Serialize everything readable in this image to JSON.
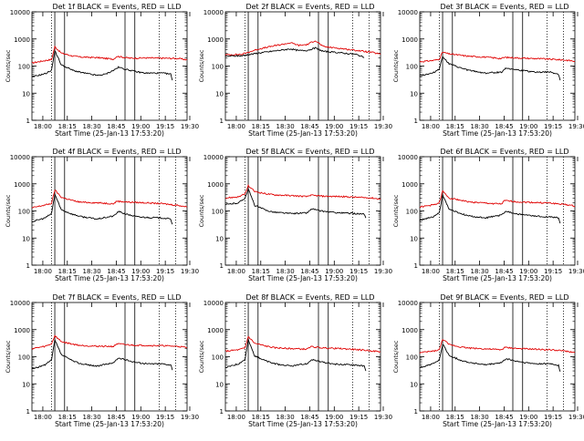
{
  "chart_data": [
    {
      "type": "line",
      "title": "Det 1f BLACK = Events, RED = LLD",
      "xlabel": "Start Time (25-Jan-13 17:53:20)",
      "ylabel": "Counts/sec",
      "yscale": "log",
      "ylim": [
        1,
        10000
      ],
      "x_tick_labels": [
        "18:00",
        "18:15",
        "18:30",
        "18:45",
        "19:00",
        "19:15",
        "19:30"
      ],
      "y_tick_labels": [
        "1",
        "10",
        "100",
        "1000",
        "10000"
      ],
      "lld": [
        [
          0,
          130
        ],
        [
          8,
          160
        ],
        [
          12,
          175
        ],
        [
          14,
          520
        ],
        [
          18,
          300
        ],
        [
          25,
          235
        ],
        [
          30,
          215
        ],
        [
          40,
          205
        ],
        [
          50,
          180
        ],
        [
          52,
          230
        ],
        [
          60,
          195
        ],
        [
          70,
          200
        ],
        [
          80,
          195
        ],
        [
          90,
          190
        ],
        [
          95,
          170
        ]
      ],
      "events": [
        [
          0,
          40
        ],
        [
          8,
          52
        ],
        [
          12,
          70
        ],
        [
          14,
          380
        ],
        [
          18,
          110
        ],
        [
          25,
          70
        ],
        [
          30,
          58
        ],
        [
          40,
          45
        ],
        [
          45,
          50
        ],
        [
          50,
          70
        ],
        [
          53,
          90
        ],
        [
          58,
          75
        ],
        [
          65,
          60
        ],
        [
          70,
          55
        ],
        [
          80,
          55
        ],
        [
          85,
          50
        ],
        [
          86,
          30
        ]
      ]
    },
    {
      "type": "line",
      "title": "Det 2f BLACK = Events, RED = LLD",
      "xlabel": "Start Time (25-Jan-13 17:53:20)",
      "ylabel": "Counts/sec",
      "yscale": "log",
      "ylim": [
        1,
        10000
      ],
      "x_tick_labels": [
        "18:00",
        "18:15",
        "18:30",
        "18:45",
        "19:00",
        "19:15",
        "19:30"
      ],
      "y_tick_labels": [
        "1",
        "10",
        "100",
        "1000",
        "10000"
      ],
      "lld": [
        [
          0,
          260
        ],
        [
          10,
          270
        ],
        [
          20,
          420
        ],
        [
          30,
          560
        ],
        [
          40,
          720
        ],
        [
          45,
          580
        ],
        [
          50,
          620
        ],
        [
          55,
          880
        ],
        [
          60,
          520
        ],
        [
          70,
          450
        ],
        [
          80,
          380
        ],
        [
          90,
          320
        ],
        [
          95,
          270
        ]
      ],
      "events": [
        [
          0,
          230
        ],
        [
          10,
          240
        ],
        [
          20,
          300
        ],
        [
          30,
          360
        ],
        [
          40,
          430
        ],
        [
          45,
          370
        ],
        [
          50,
          380
        ],
        [
          55,
          460
        ],
        [
          60,
          350
        ],
        [
          70,
          310
        ],
        [
          80,
          270
        ],
        [
          85,
          210
        ]
      ]
    },
    {
      "type": "line",
      "title": "Det 3f BLACK = Events, RED = LLD",
      "xlabel": "Start Time (25-Jan-13 17:53:20)",
      "ylabel": "Counts/sec",
      "yscale": "log",
      "ylim": [
        1,
        10000
      ],
      "x_tick_labels": [
        "18:00",
        "18:15",
        "18:30",
        "18:45",
        "19:00",
        "19:15",
        "19:30"
      ],
      "y_tick_labels": [
        "1",
        "10",
        "100",
        "1000",
        "10000"
      ],
      "lld": [
        [
          0,
          145
        ],
        [
          8,
          160
        ],
        [
          12,
          180
        ],
        [
          14,
          330
        ],
        [
          18,
          280
        ],
        [
          25,
          250
        ],
        [
          30,
          230
        ],
        [
          40,
          215
        ],
        [
          50,
          190
        ],
        [
          52,
          210
        ],
        [
          60,
          200
        ],
        [
          70,
          190
        ],
        [
          80,
          180
        ],
        [
          90,
          165
        ],
        [
          95,
          150
        ]
      ],
      "events": [
        [
          0,
          45
        ],
        [
          8,
          55
        ],
        [
          12,
          80
        ],
        [
          14,
          230
        ],
        [
          18,
          120
        ],
        [
          25,
          85
        ],
        [
          30,
          70
        ],
        [
          40,
          55
        ],
        [
          50,
          60
        ],
        [
          53,
          85
        ],
        [
          58,
          75
        ],
        [
          65,
          65
        ],
        [
          70,
          60
        ],
        [
          80,
          60
        ],
        [
          85,
          50
        ],
        [
          86,
          30
        ]
      ]
    },
    {
      "type": "line",
      "title": "Det 4f BLACK = Events, RED = LLD",
      "xlabel": "Start Time (25-Jan-13 17:53:20)",
      "ylabel": "Counts/sec",
      "yscale": "log",
      "ylim": [
        1,
        10000
      ],
      "x_tick_labels": [
        "18:00",
        "18:15",
        "18:30",
        "18:45",
        "19:00",
        "19:15",
        "19:30"
      ],
      "y_tick_labels": [
        "1",
        "10",
        "100",
        "1000",
        "10000"
      ],
      "lld": [
        [
          0,
          130
        ],
        [
          8,
          165
        ],
        [
          12,
          190
        ],
        [
          14,
          600
        ],
        [
          18,
          320
        ],
        [
          25,
          240
        ],
        [
          30,
          210
        ],
        [
          40,
          200
        ],
        [
          50,
          185
        ],
        [
          52,
          230
        ],
        [
          60,
          210
        ],
        [
          70,
          200
        ],
        [
          80,
          185
        ],
        [
          90,
          160
        ],
        [
          95,
          140
        ]
      ],
      "events": [
        [
          0,
          40
        ],
        [
          8,
          55
        ],
        [
          12,
          80
        ],
        [
          14,
          420
        ],
        [
          18,
          110
        ],
        [
          25,
          75
        ],
        [
          30,
          62
        ],
        [
          40,
          50
        ],
        [
          50,
          65
        ],
        [
          53,
          95
        ],
        [
          58,
          75
        ],
        [
          65,
          60
        ],
        [
          70,
          58
        ],
        [
          80,
          55
        ],
        [
          85,
          50
        ],
        [
          86,
          32
        ]
      ]
    },
    {
      "type": "line",
      "title": "Det 5f BLACK = Events, RED = LLD",
      "xlabel": "Start Time (25-Jan-13 17:53:20)",
      "ylabel": "Counts/sec",
      "yscale": "log",
      "ylim": [
        1,
        10000
      ],
      "x_tick_labels": [
        "18:00",
        "18:15",
        "18:30",
        "18:45",
        "19:00",
        "19:15",
        "19:30"
      ],
      "y_tick_labels": [
        "1",
        "10",
        "100",
        "1000",
        "10000"
      ],
      "lld": [
        [
          0,
          300
        ],
        [
          8,
          330
        ],
        [
          12,
          420
        ],
        [
          14,
          850
        ],
        [
          18,
          520
        ],
        [
          25,
          430
        ],
        [
          30,
          390
        ],
        [
          40,
          370
        ],
        [
          50,
          340
        ],
        [
          52,
          380
        ],
        [
          60,
          350
        ],
        [
          70,
          340
        ],
        [
          80,
          320
        ],
        [
          90,
          300
        ],
        [
          95,
          270
        ]
      ],
      "events": [
        [
          0,
          170
        ],
        [
          8,
          200
        ],
        [
          12,
          300
        ],
        [
          14,
          650
        ],
        [
          18,
          160
        ],
        [
          25,
          105
        ],
        [
          30,
          90
        ],
        [
          40,
          80
        ],
        [
          50,
          85
        ],
        [
          53,
          120
        ],
        [
          58,
          100
        ],
        [
          65,
          90
        ],
        [
          70,
          85
        ],
        [
          80,
          80
        ],
        [
          85,
          75
        ],
        [
          86,
          55
        ]
      ]
    },
    {
      "type": "line",
      "title": "Det 6f BLACK = Events, RED = LLD",
      "xlabel": "Start Time (25-Jan-13 17:53:20)",
      "ylabel": "Counts/sec",
      "yscale": "log",
      "ylim": [
        1,
        10000
      ],
      "x_tick_labels": [
        "18:00",
        "18:15",
        "18:30",
        "18:45",
        "19:00",
        "19:15",
        "19:30"
      ],
      "y_tick_labels": [
        "1",
        "10",
        "100",
        "1000",
        "10000"
      ],
      "lld": [
        [
          0,
          140
        ],
        [
          8,
          165
        ],
        [
          12,
          200
        ],
        [
          14,
          540
        ],
        [
          18,
          300
        ],
        [
          25,
          250
        ],
        [
          30,
          215
        ],
        [
          40,
          195
        ],
        [
          50,
          180
        ],
        [
          52,
          240
        ],
        [
          60,
          215
        ],
        [
          70,
          205
        ],
        [
          80,
          195
        ],
        [
          90,
          170
        ],
        [
          95,
          150
        ]
      ],
      "events": [
        [
          0,
          45
        ],
        [
          8,
          60
        ],
        [
          12,
          85
        ],
        [
          14,
          400
        ],
        [
          18,
          115
        ],
        [
          25,
          80
        ],
        [
          30,
          65
        ],
        [
          40,
          55
        ],
        [
          50,
          70
        ],
        [
          53,
          100
        ],
        [
          58,
          80
        ],
        [
          65,
          70
        ],
        [
          70,
          65
        ],
        [
          80,
          60
        ],
        [
          85,
          55
        ],
        [
          86,
          35
        ]
      ]
    },
    {
      "type": "line",
      "title": "Det 7f BLACK = Events, RED = LLD",
      "xlabel": "Start Time (25-Jan-13 17:53:20)",
      "ylabel": "Counts/sec",
      "yscale": "log",
      "ylim": [
        1,
        10000
      ],
      "x_tick_labels": [
        "18:00",
        "18:15",
        "18:30",
        "18:45",
        "19:00",
        "19:15",
        "19:30"
      ],
      "y_tick_labels": [
        "1",
        "10",
        "100",
        "1000",
        "10000"
      ],
      "lld": [
        [
          0,
          200
        ],
        [
          8,
          240
        ],
        [
          12,
          300
        ],
        [
          14,
          600
        ],
        [
          18,
          360
        ],
        [
          25,
          290
        ],
        [
          30,
          260
        ],
        [
          40,
          245
        ],
        [
          50,
          240
        ],
        [
          52,
          300
        ],
        [
          60,
          270
        ],
        [
          70,
          260
        ],
        [
          80,
          255
        ],
        [
          90,
          240
        ],
        [
          95,
          215
        ]
      ],
      "events": [
        [
          0,
          35
        ],
        [
          8,
          50
        ],
        [
          12,
          75
        ],
        [
          14,
          420
        ],
        [
          18,
          120
        ],
        [
          25,
          70
        ],
        [
          30,
          55
        ],
        [
          40,
          45
        ],
        [
          50,
          60
        ],
        [
          53,
          90
        ],
        [
          58,
          75
        ],
        [
          65,
          60
        ],
        [
          70,
          55
        ],
        [
          80,
          55
        ],
        [
          85,
          50
        ],
        [
          86,
          32
        ]
      ]
    },
    {
      "type": "line",
      "title": "Det 8f BLACK = Events, RED = LLD",
      "xlabel": "Start Time (25-Jan-13 17:53:20)",
      "ylabel": "Counts/sec",
      "yscale": "log",
      "ylim": [
        1,
        10000
      ],
      "x_tick_labels": [
        "18:00",
        "18:15",
        "18:30",
        "18:45",
        "19:00",
        "19:15",
        "19:30"
      ],
      "y_tick_labels": [
        "1",
        "10",
        "100",
        "1000",
        "10000"
      ],
      "lld": [
        [
          0,
          160
        ],
        [
          8,
          180
        ],
        [
          12,
          210
        ],
        [
          14,
          560
        ],
        [
          18,
          310
        ],
        [
          25,
          245
        ],
        [
          30,
          215
        ],
        [
          40,
          200
        ],
        [
          50,
          190
        ],
        [
          52,
          235
        ],
        [
          60,
          210
        ],
        [
          70,
          200
        ],
        [
          80,
          185
        ],
        [
          90,
          165
        ],
        [
          95,
          150
        ]
      ],
      "events": [
        [
          0,
          40
        ],
        [
          8,
          55
        ],
        [
          12,
          80
        ],
        [
          14,
          420
        ],
        [
          18,
          105
        ],
        [
          25,
          70
        ],
        [
          30,
          55
        ],
        [
          40,
          45
        ],
        [
          50,
          55
        ],
        [
          53,
          80
        ],
        [
          58,
          65
        ],
        [
          65,
          55
        ],
        [
          70,
          52
        ],
        [
          80,
          50
        ],
        [
          85,
          45
        ],
        [
          86,
          30
        ]
      ]
    },
    {
      "type": "line",
      "title": "Det 9f BLACK = Events, RED = LLD",
      "xlabel": "Start Time (25-Jan-13 17:53:20)",
      "ylabel": "Counts/sec",
      "yscale": "log",
      "ylim": [
        1,
        10000
      ],
      "x_tick_labels": [
        "18:00",
        "18:15",
        "18:30",
        "18:45",
        "19:00",
        "19:15",
        "19:30"
      ],
      "y_tick_labels": [
        "1",
        "10",
        "100",
        "1000",
        "10000"
      ],
      "lld": [
        [
          0,
          140
        ],
        [
          8,
          160
        ],
        [
          12,
          180
        ],
        [
          14,
          450
        ],
        [
          18,
          280
        ],
        [
          25,
          230
        ],
        [
          30,
          210
        ],
        [
          40,
          195
        ],
        [
          50,
          180
        ],
        [
          52,
          220
        ],
        [
          60,
          200
        ],
        [
          70,
          190
        ],
        [
          80,
          180
        ],
        [
          90,
          160
        ],
        [
          95,
          140
        ]
      ],
      "events": [
        [
          0,
          40
        ],
        [
          8,
          55
        ],
        [
          12,
          75
        ],
        [
          14,
          300
        ],
        [
          18,
          110
        ],
        [
          25,
          75
        ],
        [
          30,
          62
        ],
        [
          40,
          50
        ],
        [
          50,
          60
        ],
        [
          53,
          85
        ],
        [
          58,
          70
        ],
        [
          65,
          60
        ],
        [
          70,
          55
        ],
        [
          80,
          55
        ],
        [
          85,
          48
        ],
        [
          86,
          28
        ]
      ]
    }
  ],
  "colors": {
    "events": "#000000",
    "lld": "#e00000",
    "axes": "#000000"
  }
}
